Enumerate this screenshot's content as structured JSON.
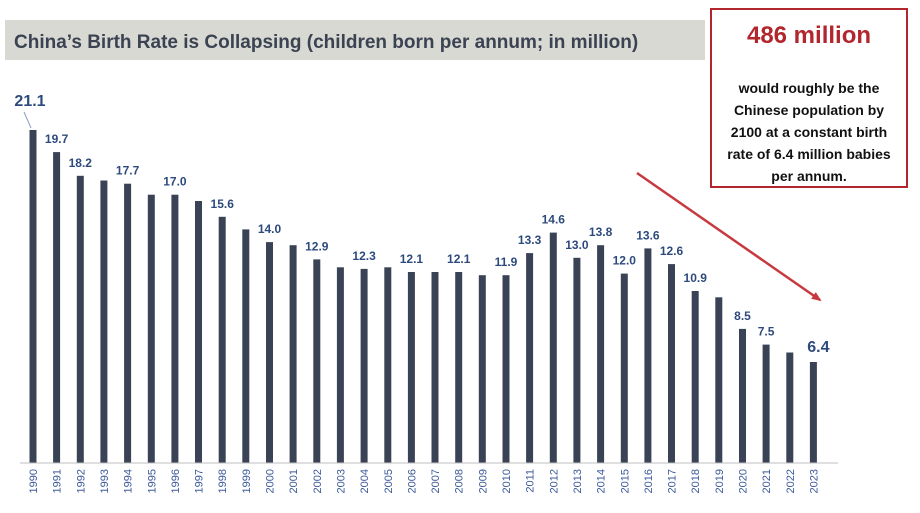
{
  "title": "China’s Birth Rate is Collapsing (children born per annum; in million)",
  "callout": {
    "headline": "486 million",
    "body": "would roughly be the Chinese population by 2100 at a constant birth rate of 6.4 million babies per annum."
  },
  "chart_data": {
    "type": "bar",
    "title": "China’s Birth Rate is Collapsing (children born per annum; in million)",
    "xlabel": "",
    "ylabel": "",
    "ylim": [
      0,
      21.1
    ],
    "grid": false,
    "categories": [
      "1990",
      "1991",
      "1992",
      "1993",
      "1994",
      "1995",
      "1996",
      "1997",
      "1998",
      "1999",
      "2000",
      "2001",
      "2002",
      "2003",
      "2004",
      "2005",
      "2006",
      "2007",
      "2008",
      "2009",
      "2010",
      "2011",
      "2012",
      "2013",
      "2014",
      "2015",
      "2016",
      "2017",
      "2018",
      "2019",
      "2020",
      "2021",
      "2022",
      "2023"
    ],
    "values": [
      21.1,
      19.7,
      18.2,
      17.9,
      17.7,
      17.0,
      17.0,
      16.6,
      15.6,
      14.8,
      14.0,
      13.8,
      12.9,
      12.4,
      12.3,
      12.4,
      12.1,
      12.1,
      12.1,
      11.9,
      11.9,
      13.3,
      14.6,
      13.0,
      13.8,
      12.0,
      13.6,
      12.6,
      10.9,
      10.5,
      8.5,
      7.5,
      7.0,
      6.4
    ],
    "data_labels": [
      {
        "category": "1990",
        "text": "21.1"
      },
      {
        "category": "1991",
        "text": "19.7"
      },
      {
        "category": "1992",
        "text": "18.2"
      },
      {
        "category": "1994",
        "text": "17.7"
      },
      {
        "category": "1996",
        "text": "17.0"
      },
      {
        "category": "1998",
        "text": "15.6"
      },
      {
        "category": "2000",
        "text": "14.0"
      },
      {
        "category": "2002",
        "text": "12.9"
      },
      {
        "category": "2004",
        "text": "12.3"
      },
      {
        "category": "2006",
        "text": "12.1"
      },
      {
        "category": "2008",
        "text": "12.1"
      },
      {
        "category": "2010",
        "text": "11.9"
      },
      {
        "category": "2011",
        "text": "13.3"
      },
      {
        "category": "2012",
        "text": "14.6"
      },
      {
        "category": "2013",
        "text": "13.0"
      },
      {
        "category": "2014",
        "text": "13.8"
      },
      {
        "category": "2015",
        "text": "12.0"
      },
      {
        "category": "2016",
        "text": "13.6"
      },
      {
        "category": "2017",
        "text": "12.6"
      },
      {
        "category": "2018",
        "text": "10.9"
      },
      {
        "category": "2020",
        "text": "8.5"
      },
      {
        "category": "2021",
        "text": "7.5"
      },
      {
        "category": "2023",
        "text": "6.4"
      }
    ],
    "colors": {
      "bar": "#3a4356",
      "label": "#2e4a7d",
      "accent": "#b2262d",
      "axis": "#bfbfbf",
      "tick": "#3d5a99"
    }
  }
}
